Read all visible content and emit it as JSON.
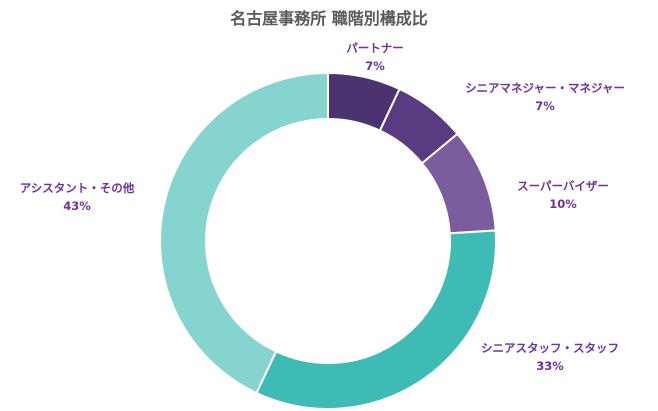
{
  "chart_data": {
    "type": "pie",
    "variant": "donut",
    "title": "名古屋事務所 職階別構成比",
    "label_color": "#7030A0",
    "slices": [
      {
        "label": "パートナー",
        "value": 7,
        "display": "7%",
        "color": "#4B3370"
      },
      {
        "label": "シニアマネジャー・マネジャー",
        "value": 7,
        "display": "7%",
        "color": "#5A3B82"
      },
      {
        "label": "スーパーバイザー",
        "value": 10,
        "display": "10%",
        "color": "#7B5C9E"
      },
      {
        "label": "シニアスタッフ・スタッフ",
        "value": 33,
        "display": "33%",
        "color": "#3EBBB4"
      },
      {
        "label": "アシスタント・その他",
        "value": 43,
        "display": "43%",
        "color": "#86D4D0"
      }
    ],
    "legend": "none"
  }
}
